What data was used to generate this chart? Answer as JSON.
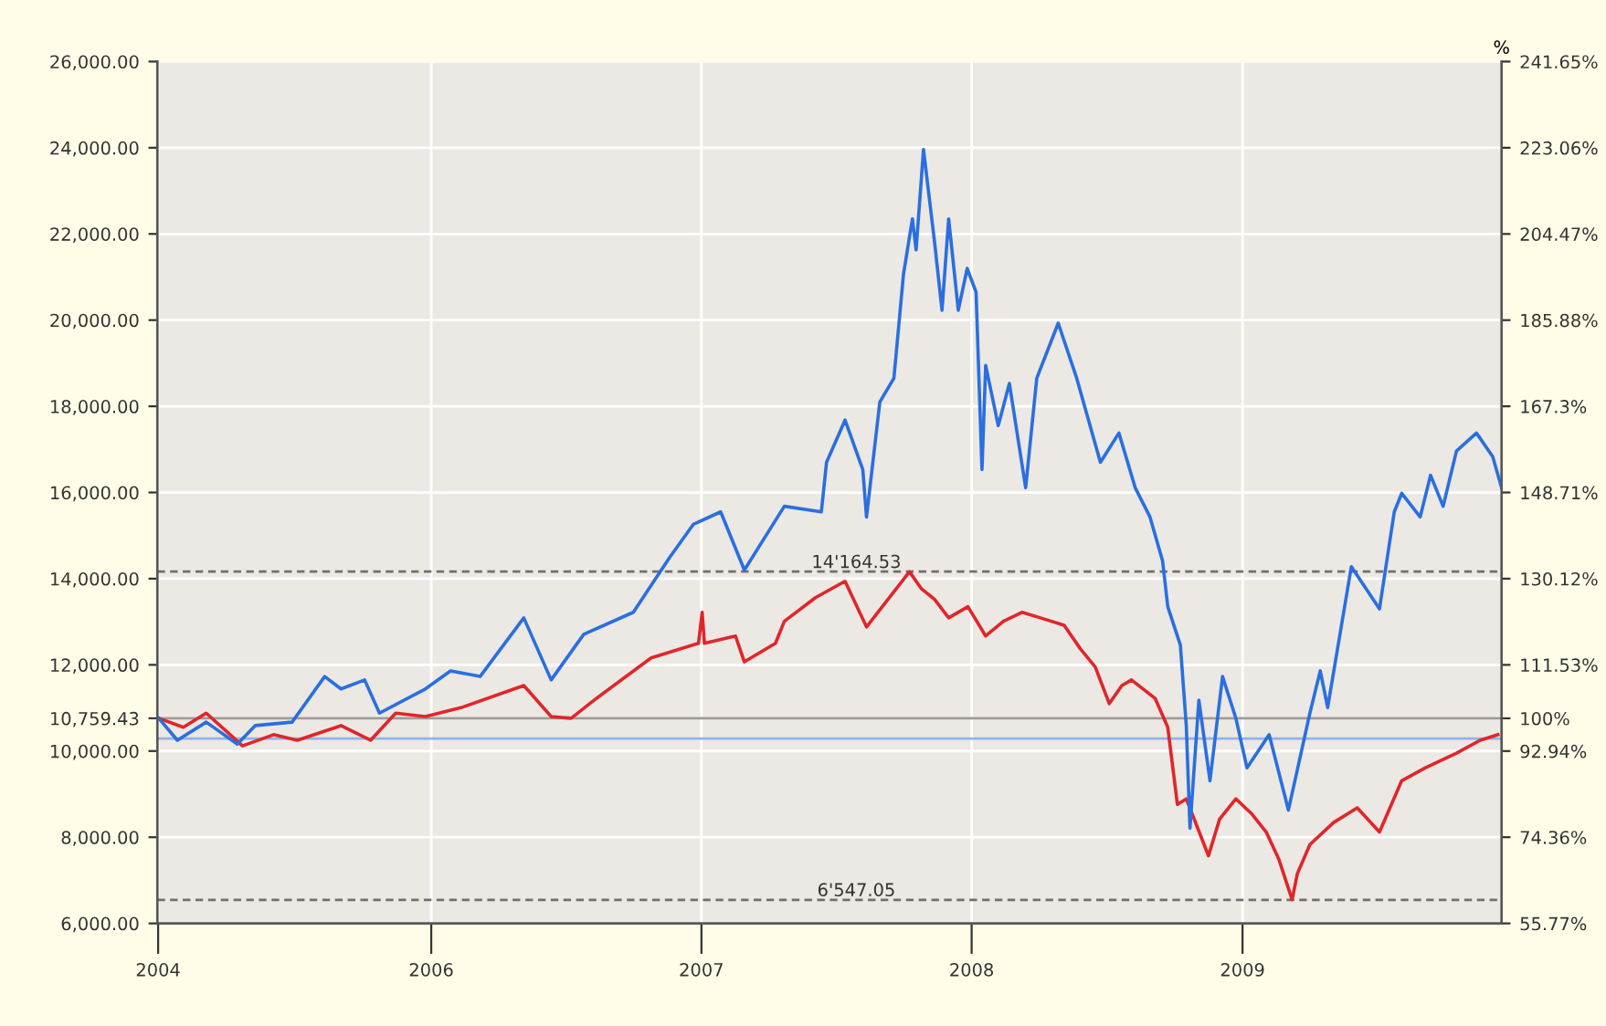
{
  "chart_data": {
    "type": "line",
    "y2label": "%",
    "xlim": [
      "2004-12-27",
      "2009-12-17"
    ],
    "xticks": [
      {
        "value": "2004-12-28",
        "label": "2004"
      },
      {
        "value": "2006-01-01",
        "label": "2006"
      },
      {
        "value": "2007-01-01",
        "label": "2007"
      },
      {
        "value": "2008-01-01",
        "label": "2008"
      },
      {
        "value": "2009-01-01",
        "label": "2009"
      }
    ],
    "ylim": [
      6000,
      26000
    ],
    "yticks": [
      {
        "value": 6000,
        "label": "6,000.00"
      },
      {
        "value": 8000,
        "label": "8,000.00"
      },
      {
        "value": 10000,
        "label": "10,000.00"
      },
      {
        "value": 10759.43,
        "label": "10,759.43"
      },
      {
        "value": 12000,
        "label": "12,000.00"
      },
      {
        "value": 14000,
        "label": "14,000.00"
      },
      {
        "value": 16000,
        "label": "16,000.00"
      },
      {
        "value": 18000,
        "label": "18,000.00"
      },
      {
        "value": 20000,
        "label": "20,000.00"
      },
      {
        "value": 22000,
        "label": "22,000.00"
      },
      {
        "value": 24000,
        "label": "24,000.00"
      },
      {
        "value": 26000,
        "label": "26,000.00"
      }
    ],
    "y2lim": [
      55.77,
      241.65
    ],
    "y2ticks": [
      {
        "value": 55.77,
        "label": "55.77%"
      },
      {
        "value": 74.36,
        "label": "74.36%"
      },
      {
        "value": 92.94,
        "label": "92.94%"
      },
      {
        "value": 100,
        "label": "100%"
      },
      {
        "value": 111.53,
        "label": "111.53%"
      },
      {
        "value": 130.12,
        "label": "130.12%"
      },
      {
        "value": 148.71,
        "label": "148.71%"
      },
      {
        "value": 167.3,
        "label": "167.3%"
      },
      {
        "value": 185.88,
        "label": "185.88%"
      },
      {
        "value": 204.47,
        "label": "204.47%"
      },
      {
        "value": 223.06,
        "label": "223.06%"
      },
      {
        "value": 241.65,
        "label": "241.65%"
      }
    ],
    "grid": true,
    "legend": false,
    "marker": "none",
    "line_style": "solid",
    "ref_lines": [
      {
        "axis": "y",
        "value": 14164.53,
        "label": "14'164.53",
        "color": "#707070",
        "line_style": "dashed"
      },
      {
        "axis": "y",
        "value": 6547.05,
        "label": "6'547.05",
        "color": "#707070",
        "line_style": "dashed"
      },
      {
        "axis": "y",
        "value": 10759.43,
        "color": "#a09a9a",
        "line_style": "solid"
      },
      {
        "axis": "y",
        "value": 10290,
        "color": "#8fb4e8",
        "line_style": "solid"
      }
    ],
    "series": [
      {
        "color": "#e0262a",
        "x": [
          "2004-12-29",
          "2005-01-31",
          "2005-03-03",
          "2005-04-21",
          "2005-06-02",
          "2005-07-04",
          "2005-09-01",
          "2005-10-11",
          "2005-11-14",
          "2005-12-24",
          "2006-02-11",
          "2006-05-06",
          "2006-06-12",
          "2006-07-09",
          "2006-08-12",
          "2006-10-25",
          "2006-12-28",
          "2007-01-02",
          "2007-01-05",
          "2007-02-16",
          "2007-02-28",
          "2007-04-11",
          "2007-04-23",
          "2007-06-04",
          "2007-07-14",
          "2007-08-12",
          "2007-10-09",
          "2007-10-25",
          "2007-11-12",
          "2007-12-01",
          "2007-12-27",
          "2008-01-20",
          "2008-02-13",
          "2008-03-09",
          "2008-04-03",
          "2008-05-05",
          "2008-05-27",
          "2008-06-16",
          "2008-07-05",
          "2008-07-22",
          "2008-08-04",
          "2008-09-05",
          "2008-09-22",
          "2008-10-05",
          "2008-10-17",
          "2008-11-16",
          "2008-12-01",
          "2008-12-23",
          "2009-01-13",
          "2009-02-02",
          "2009-02-19",
          "2009-03-09",
          "2009-03-16",
          "2009-04-02",
          "2009-05-04",
          "2009-06-05",
          "2009-07-05",
          "2009-08-04",
          "2009-09-05",
          "2009-10-17",
          "2009-11-18",
          "2009-12-12"
        ],
        "values": [
          10760,
          10550,
          10880,
          10120,
          10380,
          10250,
          10590,
          10250,
          10880,
          10800,
          11010,
          11520,
          10800,
          10760,
          11220,
          12160,
          12500,
          13220,
          12500,
          12670,
          12070,
          12500,
          13010,
          13560,
          13940,
          12880,
          14160,
          13770,
          13520,
          13090,
          13350,
          12670,
          13010,
          13220,
          13090,
          12920,
          12370,
          11950,
          11100,
          11520,
          11650,
          11220,
          10550,
          8760,
          8890,
          7570,
          8420,
          8890,
          8550,
          8120,
          7490,
          6550,
          7150,
          7830,
          8340,
          8680,
          8120,
          9310,
          9610,
          9950,
          10250,
          10380
        ]
      },
      {
        "color": "#2a6fe0",
        "x": [
          "2004-12-29",
          "2005-01-23",
          "2005-03-03",
          "2005-04-14",
          "2005-05-08",
          "2005-06-27",
          "2005-08-10",
          "2005-09-01",
          "2005-10-03",
          "2005-10-23",
          "2005-12-24",
          "2006-01-27",
          "2006-03-08",
          "2006-05-06",
          "2006-06-12",
          "2006-07-26",
          "2006-10-01",
          "2006-11-19",
          "2006-12-21",
          "2007-01-27",
          "2007-02-28",
          "2007-04-23",
          "2007-06-12",
          "2007-06-19",
          "2007-07-14",
          "2007-08-07",
          "2007-08-12",
          "2007-08-30",
          "2007-09-18",
          "2007-10-01",
          "2007-10-13",
          "2007-10-18",
          "2007-10-28",
          "2007-11-12",
          "2007-11-22",
          "2007-12-01",
          "2007-12-14",
          "2007-12-26",
          "2008-01-07",
          "2008-01-15",
          "2008-01-20",
          "2008-02-06",
          "2008-02-21",
          "2008-03-14",
          "2008-03-29",
          "2008-04-27",
          "2008-05-22",
          "2008-06-23",
          "2008-07-18",
          "2008-08-09",
          "2008-08-29",
          "2008-09-15",
          "2008-09-22",
          "2008-10-09",
          "2008-10-17",
          "2008-10-22",
          "2008-11-03",
          "2008-11-18",
          "2008-12-05",
          "2008-12-23",
          "2009-01-07",
          "2009-02-06",
          "2009-03-04",
          "2009-04-02",
          "2009-04-16",
          "2009-04-26",
          "2009-05-28",
          "2009-07-05",
          "2009-07-25",
          "2009-08-04",
          "2009-08-29",
          "2009-09-12",
          "2009-09-29",
          "2009-10-17",
          "2009-11-13",
          "2009-12-05",
          "2009-12-17"
        ],
        "values": [
          10760,
          10250,
          10670,
          10160,
          10590,
          10670,
          11730,
          11440,
          11650,
          10880,
          11440,
          11860,
          11730,
          13090,
          11650,
          12710,
          13220,
          14490,
          15260,
          15550,
          14200,
          15680,
          15550,
          16700,
          17680,
          16530,
          15430,
          18100,
          18650,
          21070,
          22350,
          21630,
          23960,
          21800,
          20230,
          22350,
          20230,
          21200,
          20650,
          16530,
          18950,
          17550,
          18530,
          16110,
          18650,
          19930,
          18650,
          16700,
          17380,
          16110,
          15430,
          14410,
          13350,
          12460,
          10590,
          8210,
          11180,
          9310,
          11730,
          10760,
          9610,
          10380,
          8630,
          10880,
          11860,
          11010,
          14280,
          13300,
          15550,
          15980,
          15430,
          16400,
          15680,
          16960,
          17380,
          16830,
          16110
        ]
      }
    ]
  }
}
